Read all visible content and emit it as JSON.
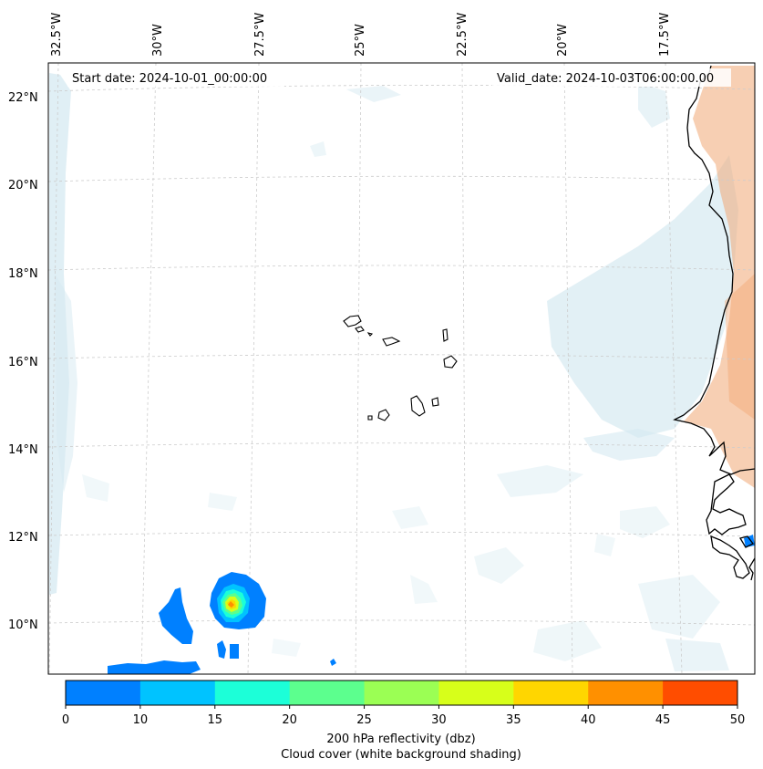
{
  "map": {
    "start_date": "Start date: 2024-10-01_00:00:00",
    "valid_date": "Valid_date: 2024-10-03T06:00:00.00",
    "lon_labels": [
      "32.5°W",
      "30°W",
      "27.5°W",
      "25°W",
      "22.5°W",
      "20°W",
      "17.5°W"
    ],
    "lat_labels": [
      "22°N",
      "20°N",
      "18°N",
      "16°N",
      "14°N",
      "12°N",
      "10°N"
    ]
  },
  "colorbar": {
    "ticks": [
      "0",
      "10",
      "15",
      "20",
      "25",
      "30",
      "35",
      "40",
      "45",
      "50"
    ],
    "colors": [
      "#0080ff",
      "#00c3ff",
      "#1cffd8",
      "#5cff8e",
      "#9bff54",
      "#d7ff1a",
      "#ffd600",
      "#ff9000",
      "#ff4d00"
    ],
    "label_line1": "200 hPa reflectivity (dbz)",
    "label_line2": "Cloud cover (white background shading)"
  },
  "colors": {
    "cloud": "#d6eaf1",
    "land_warm": "#f1a774",
    "coast": "#000000",
    "grid": "#cccccc"
  }
}
